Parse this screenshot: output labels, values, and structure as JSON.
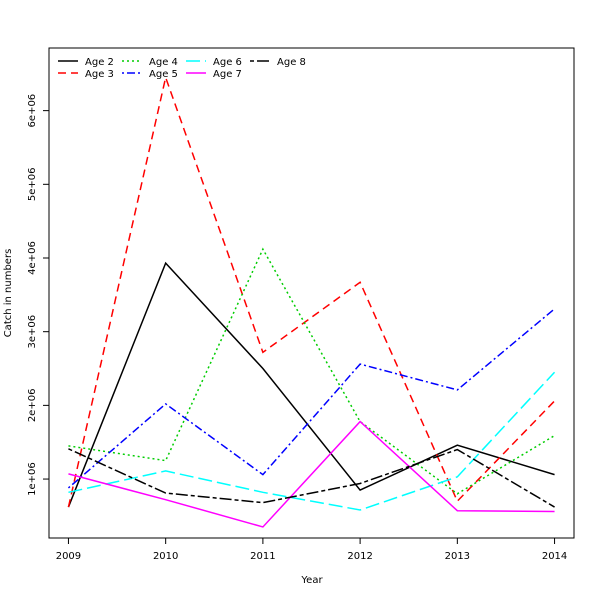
{
  "chart_data": {
    "type": "line",
    "title": "",
    "xlabel": "Year",
    "ylabel": "Catch in numbers",
    "x": [
      2009,
      2010,
      2011,
      2012,
      2013,
      2014
    ],
    "xlim": [
      2008.8,
      2014.2
    ],
    "ylim": [
      200000,
      6850000
    ],
    "yticks": [
      1000000,
      2000000,
      3000000,
      4000000,
      5000000,
      6000000
    ],
    "ytick_labels": [
      "1e+06",
      "2e+06",
      "3e+06",
      "4e+06",
      "5e+06",
      "6e+06"
    ],
    "grid": false,
    "legend_position": "top-left",
    "series": [
      {
        "name": "Age 2",
        "color": "#000000",
        "dash": "solid",
        "values": [
          620000,
          3930000,
          2500000,
          850000,
          1460000,
          1060000
        ]
      },
      {
        "name": "Age 3",
        "color": "#ff0000",
        "dash": "dashed",
        "values": [
          620000,
          6450000,
          2720000,
          3670000,
          700000,
          2060000
        ]
      },
      {
        "name": "Age 4",
        "color": "#00cd00",
        "dash": "dotted",
        "values": [
          1450000,
          1250000,
          4120000,
          1780000,
          800000,
          1590000
        ]
      },
      {
        "name": "Age 5",
        "color": "#0000ff",
        "dash": "dotdash",
        "values": [
          880000,
          2020000,
          1060000,
          2560000,
          2210000,
          3310000
        ]
      },
      {
        "name": "Age 6",
        "color": "#00ffff",
        "dash": "longdash",
        "values": [
          820000,
          1110000,
          820000,
          580000,
          1030000,
          2450000
        ]
      },
      {
        "name": "Age 7",
        "color": "#ff00ff",
        "dash": "solid",
        "values": [
          1070000,
          720000,
          350000,
          1780000,
          570000,
          560000
        ]
      },
      {
        "name": "Age 8",
        "color": "#000000",
        "dash": "twodash",
        "values": [
          1410000,
          810000,
          680000,
          940000,
          1400000,
          620000
        ]
      }
    ]
  }
}
